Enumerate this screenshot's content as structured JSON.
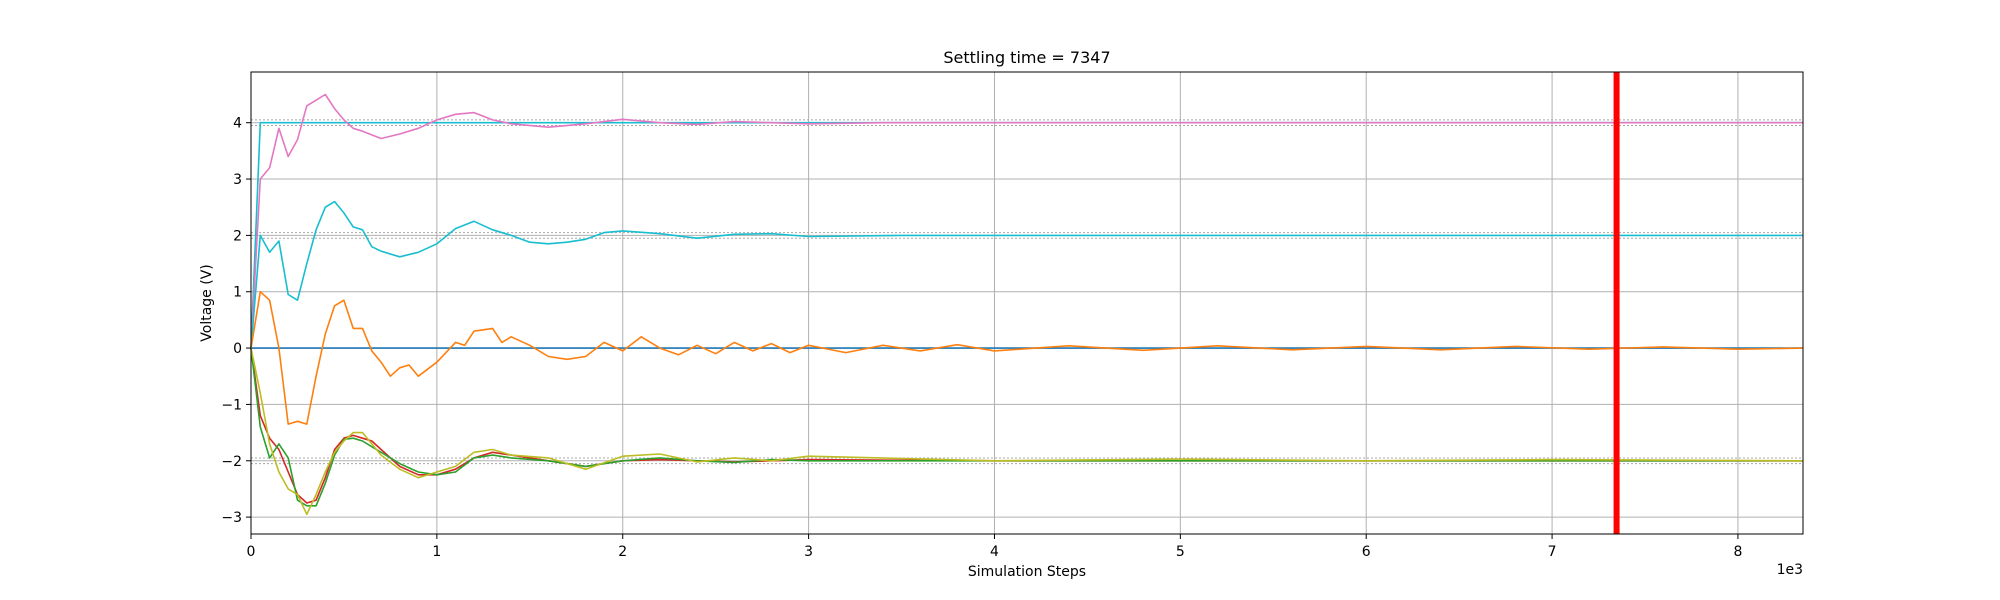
{
  "chart_data": {
    "type": "line",
    "title": "Settling time = 7347",
    "xlabel": "Simulation Steps",
    "ylabel": "Voltage (V)",
    "x_offset_label": "1e3",
    "xlim": [
      0,
      8350
    ],
    "ylim": [
      -3.3,
      4.9
    ],
    "grid": true,
    "legend": "none",
    "x_ticks": [
      0,
      1000,
      2000,
      3000,
      4000,
      5000,
      6000,
      7000,
      8000
    ],
    "x_tick_labels": [
      "0",
      "1",
      "2",
      "3",
      "4",
      "5",
      "6",
      "7",
      "8"
    ],
    "y_ticks": [
      -3,
      -2,
      -1,
      0,
      1,
      2,
      3,
      4
    ],
    "y_tick_labels": [
      "−3",
      "−2",
      "−1",
      "0",
      "1",
      "2",
      "3",
      "4"
    ],
    "settling_time": 7347,
    "settling_color": "#ff0000",
    "tolerance_bands": [
      {
        "center": 4,
        "lower": 3.95,
        "upper": 4.05,
        "color": "#a8a8a8"
      },
      {
        "center": 2,
        "lower": 1.95,
        "upper": 2.05,
        "color": "#a8a8a8"
      },
      {
        "center": -2,
        "lower": -2.05,
        "upper": -1.95,
        "color": "#a8a8a8"
      }
    ],
    "series": [
      {
        "color": "#1f77b4",
        "x": [
          0,
          50,
          100,
          8350
        ],
        "y": [
          0,
          0,
          0,
          0
        ]
      },
      {
        "color": "#17becf",
        "x": [
          0,
          50,
          8350
        ],
        "y": [
          0,
          4,
          4
        ]
      },
      {
        "color": "#e377c2",
        "x": [
          0,
          50,
          100,
          150,
          200,
          250,
          300,
          350,
          400,
          450,
          500,
          550,
          600,
          700,
          800,
          900,
          1000,
          1100,
          1200,
          1300,
          1400,
          1600,
          1800,
          2000,
          2200,
          2400,
          2600,
          2800,
          3000,
          3400,
          4000,
          8350
        ],
        "y": [
          0,
          3.0,
          3.2,
          3.9,
          3.4,
          3.7,
          4.3,
          4.4,
          4.5,
          4.25,
          4.05,
          3.9,
          3.85,
          3.72,
          3.8,
          3.9,
          4.05,
          4.15,
          4.18,
          4.05,
          3.98,
          3.92,
          3.98,
          4.06,
          4.0,
          3.97,
          4.02,
          4.0,
          3.98,
          4.0,
          4.0,
          4.0
        ]
      },
      {
        "color": "#17becf",
        "x": [
          0,
          50,
          100,
          150,
          200,
          250,
          300,
          350,
          400,
          450,
          500,
          550,
          600,
          650,
          700,
          800,
          900,
          1000,
          1100,
          1200,
          1300,
          1400,
          1500,
          1600,
          1700,
          1800,
          1900,
          2000,
          2200,
          2400,
          2600,
          2800,
          3000,
          3500,
          4000,
          5000,
          6000,
          7000,
          8350
        ],
        "y": [
          0,
          2.0,
          1.7,
          1.9,
          0.95,
          0.85,
          1.5,
          2.1,
          2.5,
          2.6,
          2.4,
          2.15,
          2.1,
          1.8,
          1.72,
          1.62,
          1.7,
          1.85,
          2.12,
          2.25,
          2.1,
          2.0,
          1.88,
          1.85,
          1.88,
          1.93,
          2.05,
          2.08,
          2.03,
          1.95,
          2.02,
          2.03,
          1.98,
          2.0,
          2.0,
          2.0,
          2.0,
          2.0,
          2.0
        ]
      },
      {
        "color": "#ff7f0e",
        "x": [
          0,
          50,
          100,
          150,
          200,
          250,
          300,
          350,
          400,
          450,
          500,
          550,
          600,
          650,
          700,
          750,
          800,
          850,
          900,
          1000,
          1100,
          1150,
          1200,
          1300,
          1350,
          1400,
          1500,
          1600,
          1700,
          1800,
          1900,
          2000,
          2100,
          2200,
          2300,
          2400,
          2500,
          2600,
          2700,
          2800,
          2900,
          3000,
          3200,
          3400,
          3600,
          3800,
          4000,
          4400,
          4800,
          5200,
          5600,
          6000,
          6400,
          6800,
          7200,
          7600,
          8000,
          8350
        ],
        "y": [
          0,
          1.0,
          0.85,
          0.0,
          -1.35,
          -1.3,
          -1.35,
          -0.5,
          0.25,
          0.75,
          0.85,
          0.35,
          0.35,
          -0.05,
          -0.25,
          -0.5,
          -0.35,
          -0.3,
          -0.5,
          -0.25,
          0.1,
          0.05,
          0.3,
          0.35,
          0.1,
          0.2,
          0.05,
          -0.15,
          -0.2,
          -0.15,
          0.1,
          -0.05,
          0.2,
          0.0,
          -0.12,
          0.05,
          -0.1,
          0.1,
          -0.05,
          0.08,
          -0.08,
          0.05,
          -0.08,
          0.05,
          -0.05,
          0.06,
          -0.05,
          0.04,
          -0.04,
          0.04,
          -0.03,
          0.03,
          -0.03,
          0.03,
          -0.02,
          0.02,
          -0.02,
          0.0
        ]
      },
      {
        "color": "#d62728",
        "x": [
          0,
          50,
          100,
          150,
          200,
          250,
          300,
          350,
          400,
          450,
          500,
          550,
          600,
          650,
          700,
          800,
          900,
          1000,
          1100,
          1200,
          1300,
          1400,
          1500,
          1600,
          1700,
          1800,
          1900,
          2000,
          2200,
          2400,
          2600,
          2800,
          3000,
          4000,
          5000,
          6000,
          7000,
          8350
        ],
        "y": [
          0,
          -1.2,
          -1.6,
          -1.8,
          -2.2,
          -2.6,
          -2.75,
          -2.7,
          -2.3,
          -1.8,
          -1.6,
          -1.55,
          -1.6,
          -1.65,
          -1.8,
          -2.1,
          -2.25,
          -2.25,
          -2.15,
          -1.95,
          -1.85,
          -1.9,
          -1.95,
          -2.0,
          -2.05,
          -2.1,
          -2.05,
          -2.0,
          -1.98,
          -2.0,
          -2.02,
          -2.0,
          -1.98,
          -2.0,
          -2.0,
          -2.0,
          -2.0,
          -2.0
        ]
      },
      {
        "color": "#2ca02c",
        "x": [
          0,
          50,
          100,
          150,
          200,
          250,
          300,
          350,
          400,
          450,
          500,
          550,
          600,
          650,
          700,
          800,
          900,
          1000,
          1100,
          1200,
          1300,
          1400,
          1600,
          1800,
          2000,
          2200,
          2400,
          2600,
          2800,
          3000,
          4000,
          5000,
          6000,
          7000,
          8350
        ],
        "y": [
          0,
          -1.4,
          -1.95,
          -1.7,
          -1.95,
          -2.7,
          -2.8,
          -2.8,
          -2.4,
          -1.9,
          -1.62,
          -1.6,
          -1.65,
          -1.75,
          -1.85,
          -2.05,
          -2.2,
          -2.25,
          -2.2,
          -1.95,
          -1.9,
          -1.95,
          -2.0,
          -2.1,
          -2.0,
          -1.95,
          -2.0,
          -2.03,
          -1.98,
          -2.0,
          -2.0,
          -2.0,
          -2.0,
          -2.0,
          -2.0
        ]
      },
      {
        "color": "#bcbd22",
        "x": [
          0,
          50,
          100,
          150,
          200,
          250,
          300,
          350,
          400,
          450,
          500,
          550,
          600,
          650,
          700,
          800,
          900,
          1000,
          1100,
          1200,
          1300,
          1400,
          1600,
          1800,
          2000,
          2200,
          2400,
          2600,
          2800,
          3000,
          4000,
          5000,
          6000,
          7000,
          8350
        ],
        "y": [
          0,
          -0.8,
          -1.7,
          -2.2,
          -2.5,
          -2.6,
          -2.95,
          -2.6,
          -2.2,
          -1.85,
          -1.65,
          -1.5,
          -1.5,
          -1.7,
          -1.9,
          -2.15,
          -2.3,
          -2.2,
          -2.1,
          -1.85,
          -1.8,
          -1.9,
          -1.95,
          -2.15,
          -1.92,
          -1.88,
          -2.02,
          -1.95,
          -2.0,
          -1.92,
          -2.0,
          -1.97,
          -2.0,
          -1.98,
          -2.0
        ]
      }
    ]
  }
}
